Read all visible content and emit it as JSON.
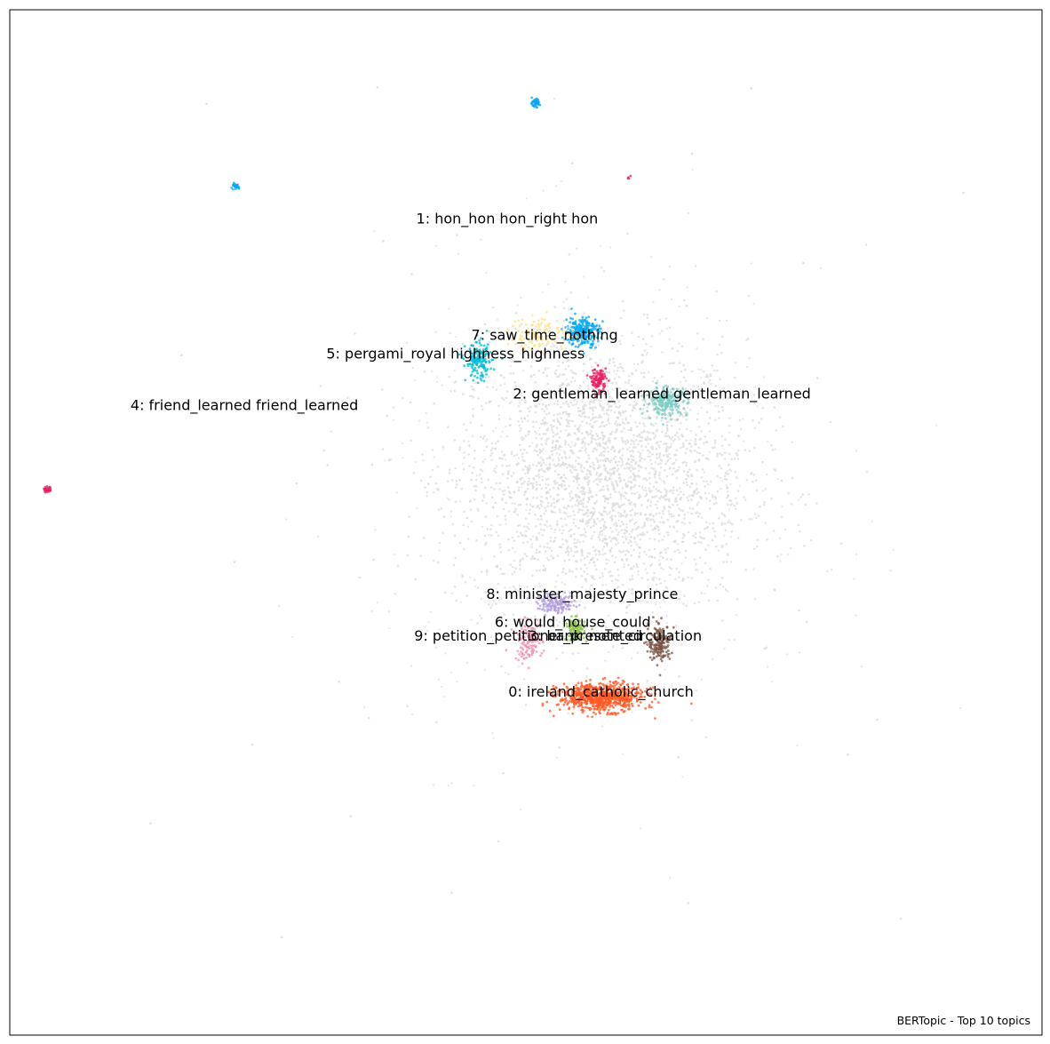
{
  "chart_data": {
    "type": "scatter",
    "title": "",
    "caption": "BERTopic - Top 10 topics",
    "xlabel": "",
    "ylabel": "",
    "xlim": [
      -11,
      11
    ],
    "ylim": [
      -11,
      11
    ],
    "grid": false,
    "axes_ticks": false,
    "background_points_color": "#d9d9d9",
    "topics": [
      {
        "id": 0,
        "label": "0: ireland_catholic_church",
        "color": "#ff5722",
        "label_pos": [
          1.6,
          -3.65
        ],
        "clusters": [
          {
            "cx": 1.6,
            "cy": -3.75,
            "sx": 0.45,
            "sy": 0.15,
            "n": 700
          }
        ]
      },
      {
        "id": 1,
        "label": "1: hon_hon hon_right hon",
        "color": "#03a9f4",
        "label_pos": [
          -0.4,
          6.5
        ],
        "clusters": [
          {
            "cx": 1.2,
            "cy": 4.1,
            "sx": 0.18,
            "sy": 0.16,
            "n": 260
          },
          {
            "cx": 0.2,
            "cy": 9.0,
            "sx": 0.05,
            "sy": 0.04,
            "n": 50
          },
          {
            "cx": -6.2,
            "cy": 7.2,
            "sx": 0.04,
            "sy": 0.03,
            "n": 25
          }
        ]
      },
      {
        "id": 2,
        "label": "2: gentleman_learned gentleman_learned",
        "color": "#80cbc4",
        "label_pos": [
          2.9,
          2.75
        ],
        "clusters": [
          {
            "cx": 3.0,
            "cy": 2.6,
            "sx": 0.22,
            "sy": 0.15,
            "n": 230
          }
        ]
      },
      {
        "id": 3,
        "label": "3: bank_note_circulation",
        "color": "#795548",
        "label_pos": [
          1.9,
          -2.45
        ],
        "clusters": [
          {
            "cx": 2.85,
            "cy": -2.6,
            "sx": 0.12,
            "sy": 0.2,
            "n": 180
          }
        ]
      },
      {
        "id": 4,
        "label": "4: friend_learned friend_learned",
        "color": "#e91e63",
        "label_pos": [
          -6.0,
          2.5
        ],
        "clusters": [
          {
            "cx": 1.55,
            "cy": 3.05,
            "sx": 0.08,
            "sy": 0.12,
            "n": 110
          },
          {
            "cx": -10.2,
            "cy": 0.7,
            "sx": 0.04,
            "sy": 0.03,
            "n": 30
          },
          {
            "cx": 2.2,
            "cy": 7.4,
            "sx": 0.02,
            "sy": 0.02,
            "n": 4
          }
        ]
      },
      {
        "id": 5,
        "label": "5: pergami_royal highness_highness",
        "color": "#00bcd4",
        "label_pos": [
          -1.5,
          3.6
        ],
        "clusters": [
          {
            "cx": -1.0,
            "cy": 3.45,
            "sx": 0.14,
            "sy": 0.2,
            "n": 160
          }
        ]
      },
      {
        "id": 6,
        "label": "6: would_house_could",
        "color": "#8bc34a",
        "label_pos": [
          1.0,
          -2.15
        ],
        "clusters": [
          {
            "cx": 1.05,
            "cy": -2.3,
            "sx": 0.1,
            "sy": 0.12,
            "n": 110
          }
        ]
      },
      {
        "id": 7,
        "label": "7: saw_time_nothing",
        "color": "#ffe082",
        "label_pos": [
          0.4,
          4.0
        ],
        "clusters": [
          {
            "cx": 0.3,
            "cy": 4.05,
            "sx": 0.35,
            "sy": 0.18,
            "n": 110
          }
        ]
      },
      {
        "id": 8,
        "label": "8: minister_majesty_prince",
        "color": "#b39ddb",
        "label_pos": [
          1.2,
          -1.55
        ],
        "clusters": [
          {
            "cx": 0.65,
            "cy": -1.75,
            "sx": 0.2,
            "sy": 0.1,
            "n": 150
          }
        ]
      },
      {
        "id": 9,
        "label": "9: petition_petitioner_presented",
        "color": "#f48fb1",
        "label_pos": [
          0.05,
          -2.45
        ],
        "clusters": [
          {
            "cx": 0.05,
            "cy": -2.55,
            "sx": 0.15,
            "sy": 0.2,
            "n": 130
          }
        ]
      }
    ]
  }
}
